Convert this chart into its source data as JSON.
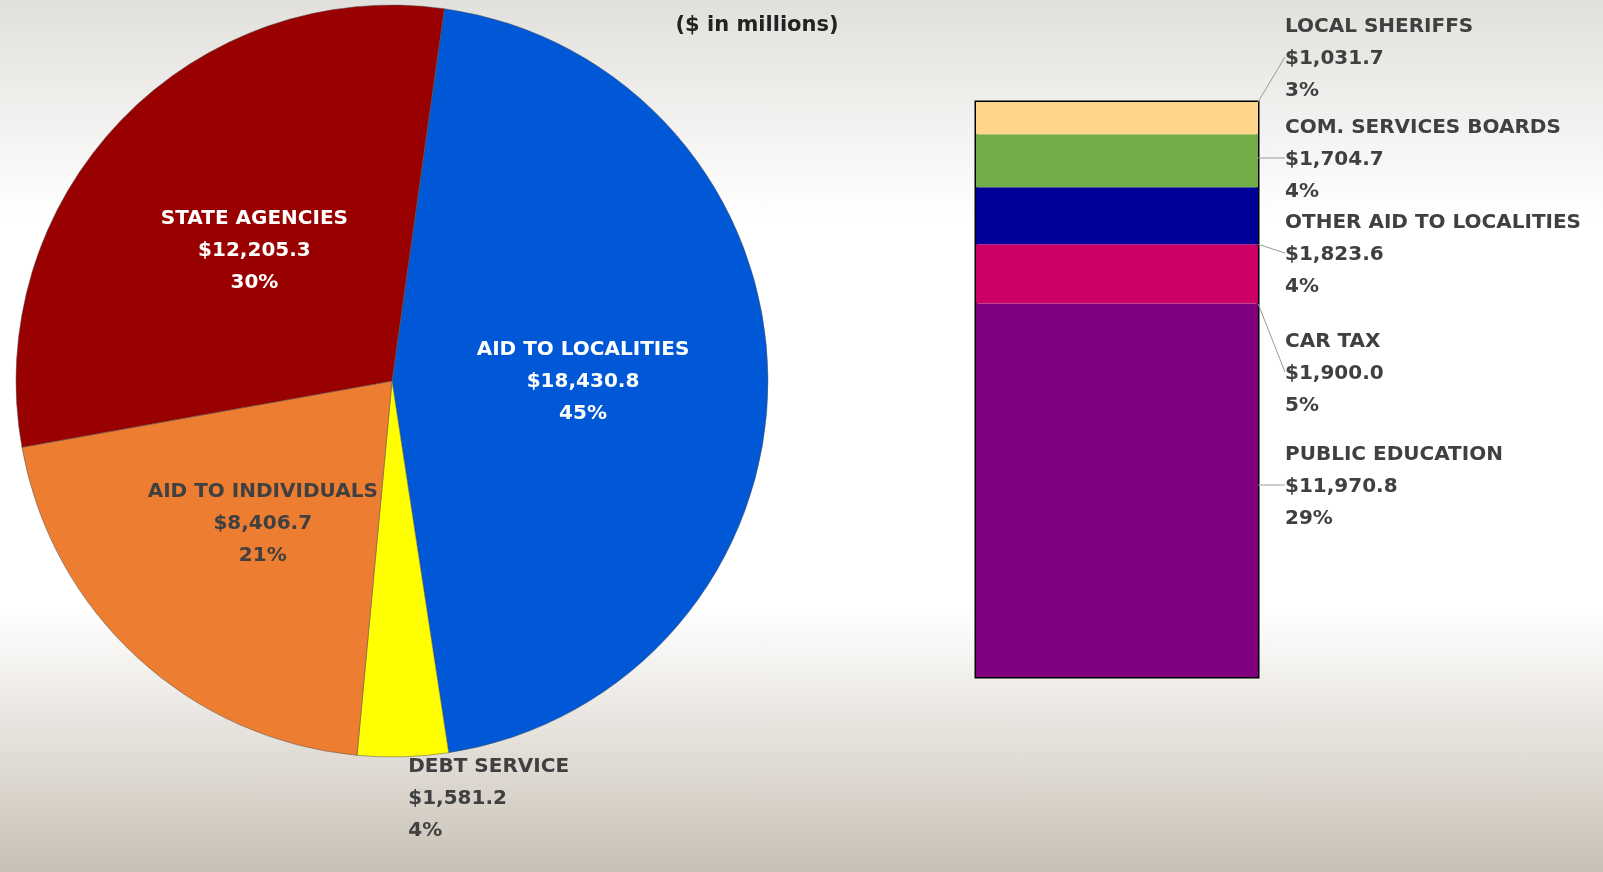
{
  "chart_data": [
    {
      "type": "pie",
      "title": "($ in millions)",
      "categories": [
        "AID TO LOCALITIES",
        "DEBT SERVICE",
        "AID TO INDIVIDUALS",
        "STATE AGENCIES"
      ],
      "values": [
        18430.8,
        1581.2,
        8406.7,
        12205.3
      ],
      "colors": [
        "#0058d6",
        "#ffff00",
        "#ed7d31",
        "#990000"
      ],
      "value_labels": [
        "$18,430.8\n45%",
        "$1,581.2\n4%",
        "$8,406.7\n21%",
        "$12,205.3\n30%"
      ],
      "legend": false
    },
    {
      "type": "bar",
      "stacked": true,
      "categories": [
        null
      ],
      "series": [
        {
          "name": "PUBLIC EDUCATION",
          "color": "#800080",
          "values": [
            11970.8
          ],
          "value_labels": [
            "$11,970.8\n29%"
          ]
        },
        {
          "name": "CAR TAX",
          "color": "#cc0066",
          "values": [
            1900.0
          ],
          "value_labels": [
            "$1,900.0\n5%"
          ]
        },
        {
          "name": "OTHER AID TO LOCALITIES",
          "color": "#000099",
          "values": [
            1823.6
          ],
          "value_labels": [
            "$1,823.6\n4%"
          ]
        },
        {
          "name": "COM. SERVICES BOARDS",
          "color": "#70ad47",
          "values": [
            1704.7
          ],
          "value_labels": [
            "$1,704.7\n4%"
          ]
        },
        {
          "name": "LOCAL SHERIFFS",
          "color": "#ffd68a",
          "values": [
            1031.7
          ],
          "value_labels": [
            "$1,031.7\n3%"
          ]
        }
      ],
      "legend": false
    }
  ]
}
